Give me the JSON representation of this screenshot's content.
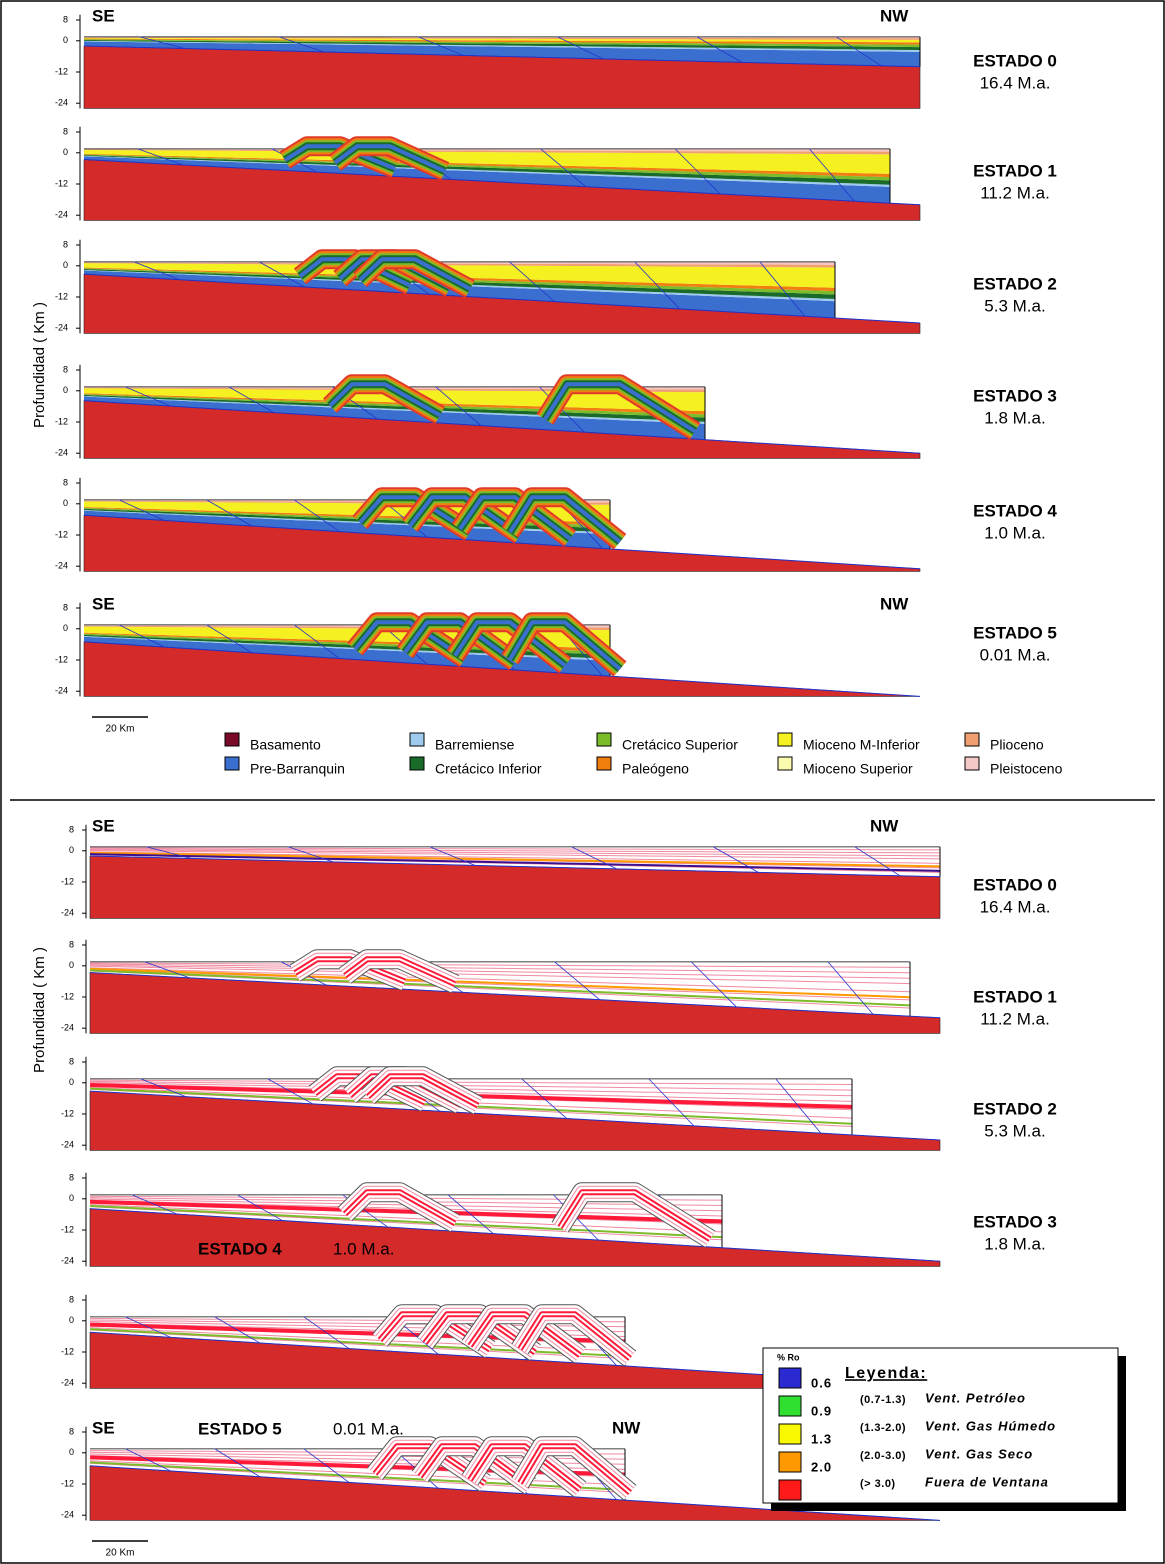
{
  "top": {
    "y_axis_label": "Profundidad ( Km )",
    "ylim": [
      -26,
      10
    ],
    "yticks": [
      8,
      0,
      -12,
      -24
    ],
    "direction": {
      "left": "SE",
      "right": "NW"
    },
    "scale_bar": "20 Km",
    "stages": [
      {
        "label": "ESTADO 0",
        "age": "16.4  M.a."
      },
      {
        "label": "ESTADO 1",
        "age": "11.2  M.a."
      },
      {
        "label": "ESTADO 2",
        "age": "5.3  M.a."
      },
      {
        "label": "ESTADO 3",
        "age": "1.8  M.a."
      },
      {
        "label": "ESTADO 4",
        "age": "1.0  M.a."
      },
      {
        "label": "ESTADO 5",
        "age": "0.01  M.a."
      }
    ],
    "legend": [
      {
        "name": "Basamento",
        "color": "#7a0a2a"
      },
      {
        "name": "Pre-Barranquin",
        "color": "#3a6fcf"
      },
      {
        "name": "Barremiense",
        "color": "#9ecbee"
      },
      {
        "name": "Cretácico Inferior",
        "color": "#1a6b2a"
      },
      {
        "name": "Cretácico Superior",
        "color": "#7cbc2a"
      },
      {
        "name": "Paleógeno",
        "color": "#f07f10"
      },
      {
        "name": "Mioceno M-Inferior",
        "color": "#f5f020"
      },
      {
        "name": "Mioceno Superior",
        "color": "#fbfbb0"
      },
      {
        "name": "Plioceno",
        "color": "#f0a070"
      },
      {
        "name": "Pleistoceno",
        "color": "#f5c8c8"
      }
    ]
  },
  "bottom": {
    "y_axis_label": "Profundidad ( Km )",
    "ylim": [
      -26,
      10
    ],
    "yticks": [
      8,
      0,
      -12,
      -24
    ],
    "direction": {
      "left": "SE",
      "right": "NW"
    },
    "scale_bar": "20 Km",
    "stages": [
      {
        "label": "ESTADO 0",
        "age": "16.4  M.a."
      },
      {
        "label": "ESTADO 1",
        "age": "11.2  M.a."
      },
      {
        "label": "ESTADO 2",
        "age": "5.3  M.a."
      },
      {
        "label": "ESTADO 3",
        "age": "1.8  M.a."
      },
      {
        "label": "ESTADO 4",
        "age": "1.0  M.a."
      },
      {
        "label": "ESTADO 5",
        "age": "0.01  M.a."
      }
    ],
    "ro_legend": {
      "unit": "% Ro",
      "title": "Leyenda:",
      "colors": [
        "#2a2ad0",
        "#30e030",
        "#f8f800",
        "#ff9900",
        "#ff1a1a"
      ],
      "thresholds": [
        "0.6",
        "0.9",
        "1.3",
        "2.0"
      ],
      "windows": [
        {
          "range": "(0.7-1.3)",
          "name": "Vent. Petróleo"
        },
        {
          "range": "(1.3-2.0)",
          "name": "Vent. Gas Húmedo"
        },
        {
          "range": "(2.0-3.0)",
          "name": "Vent. Gas Seco"
        },
        {
          "range": "(> 3.0)",
          "name": "Fuera de Ventana"
        }
      ]
    }
  }
}
